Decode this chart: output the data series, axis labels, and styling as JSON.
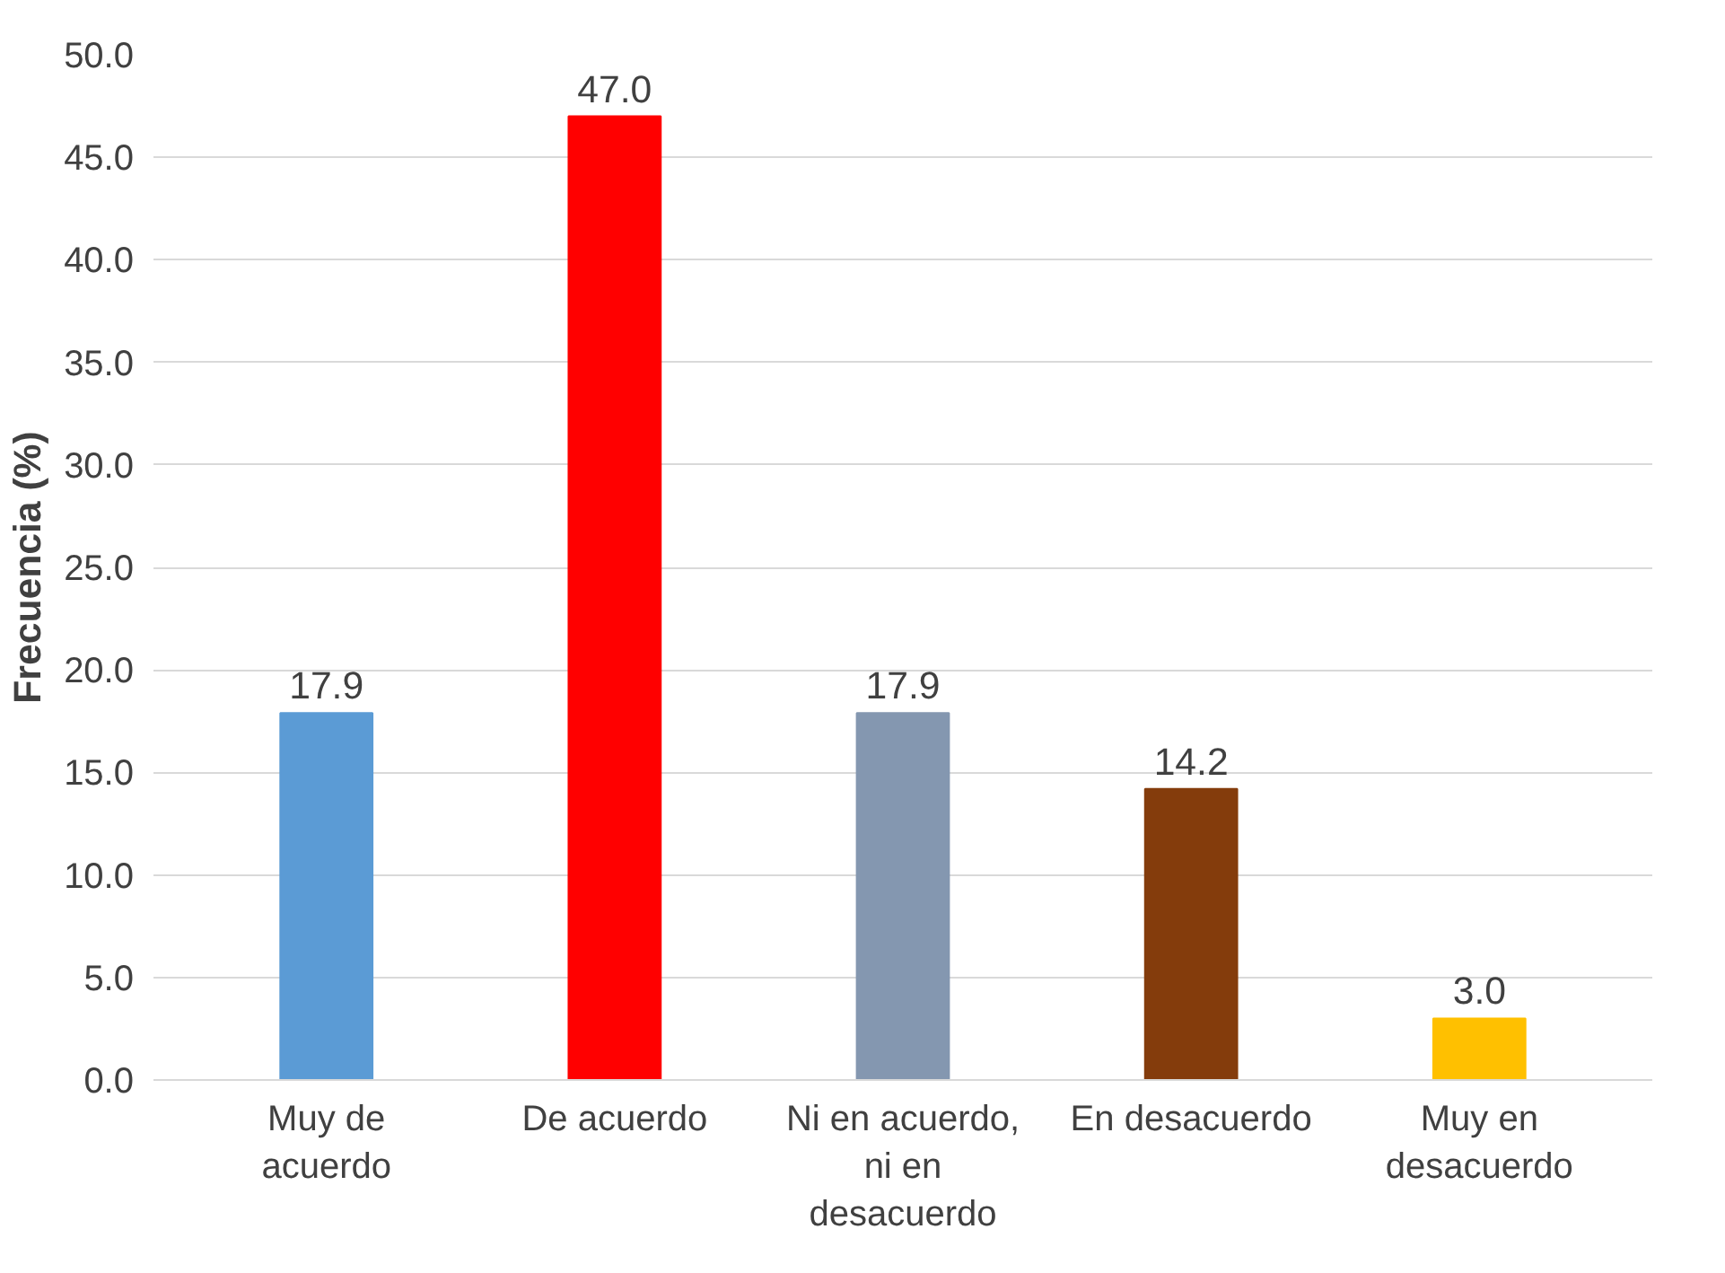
{
  "chart_data": {
    "type": "bar",
    "ylabel": "Frecuencia (%)",
    "categories": [
      "Muy de\nacuerdo",
      "De acuerdo",
      "Ni en acuerdo,\nni en\ndesacuerdo",
      "En desacuerdo",
      "Muy en\ndesacuerdo"
    ],
    "values": [
      17.9,
      47.0,
      17.9,
      14.2,
      3.0
    ],
    "value_labels": [
      "17.9",
      "47.0",
      "17.9",
      "14.2",
      "3.0"
    ],
    "colors": [
      "#5b9bd5",
      "#ff0000",
      "#8497b0",
      "#843c0c",
      "#ffc000"
    ],
    "ylim": [
      0,
      50
    ],
    "yticks": [
      {
        "value": 0,
        "label": "0.0"
      },
      {
        "value": 5,
        "label": "5.0"
      },
      {
        "value": 10,
        "label": "10.0"
      },
      {
        "value": 15,
        "label": "15.0"
      },
      {
        "value": 20,
        "label": "20.0"
      },
      {
        "value": 25,
        "label": "25.0"
      },
      {
        "value": 30,
        "label": "30.0"
      },
      {
        "value": 35,
        "label": "35.0"
      },
      {
        "value": 40,
        "label": "40.0"
      },
      {
        "value": 45,
        "label": "45.0"
      },
      {
        "value": 50,
        "label": "50.0"
      }
    ],
    "grid": "y"
  }
}
